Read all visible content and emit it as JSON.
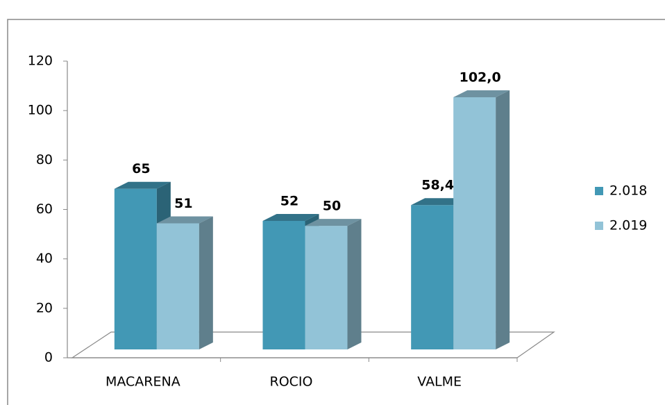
{
  "chart_data": {
    "type": "bar3d",
    "categories": [
      "MACARENA",
      "ROCIO",
      "VALME"
    ],
    "series": [
      {
        "name": "2.018",
        "color": "#4298b5",
        "values": [
          65,
          52,
          58.4
        ],
        "value_labels": [
          "65",
          "52",
          "58,4"
        ]
      },
      {
        "name": "2.019",
        "color": "#92c3d7",
        "values": [
          51,
          50,
          102
        ],
        "value_labels": [
          "51",
          "50",
          "102,0"
        ]
      }
    ],
    "ylim": [
      0,
      120
    ],
    "yticks": [
      0,
      20,
      40,
      60,
      80,
      100,
      120
    ],
    "legend": "right"
  }
}
